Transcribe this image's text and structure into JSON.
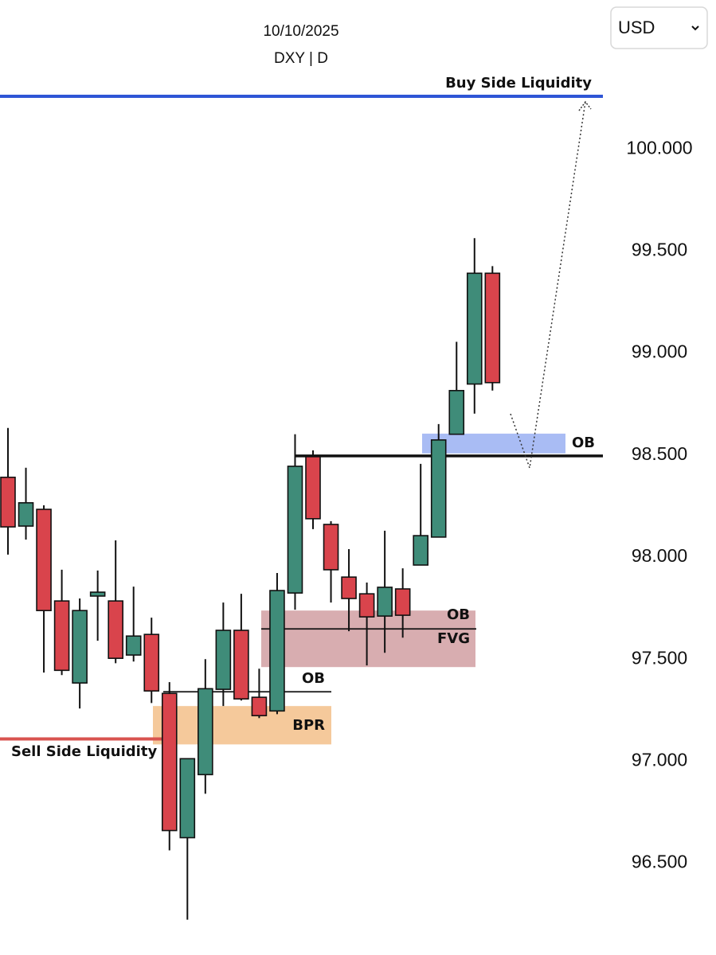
{
  "chart_data": {
    "type": "candlestick",
    "title": "10/10/2025",
    "subtitle": "DXY | D",
    "open": [
      98.391,
      98.152,
      98.234,
      97.785,
      97.383,
      97.809,
      97.785,
      97.52,
      97.621,
      97.332,
      96.625,
      96.934,
      97.352,
      97.641,
      97.313,
      97.246,
      97.824,
      98.492,
      98.16,
      97.902,
      97.82,
      97.711,
      97.844,
      97.961,
      98.098,
      98.602,
      98.848,
      99.391
    ],
    "high": [
      98.633,
      98.438,
      98.254,
      97.938,
      97.797,
      97.934,
      98.082,
      97.855,
      97.703,
      97.387,
      97.012,
      97.5,
      97.777,
      97.82,
      97.453,
      97.922,
      98.602,
      98.523,
      98.176,
      98.039,
      97.875,
      98.129,
      97.945,
      98.457,
      98.652,
      99.055,
      99.563,
      99.426
    ],
    "low": [
      98.012,
      98.086,
      97.434,
      97.422,
      97.258,
      97.59,
      97.48,
      97.488,
      97.285,
      96.563,
      96.223,
      96.84,
      97.27,
      97.297,
      97.211,
      97.23,
      97.742,
      98.137,
      97.777,
      97.637,
      97.469,
      97.531,
      97.605,
      97.961,
      98.098,
      98.602,
      98.703,
      98.816
    ],
    "close": [
      98.148,
      98.266,
      97.738,
      97.445,
      97.738,
      97.828,
      97.504,
      97.613,
      97.344,
      96.66,
      97.012,
      97.355,
      97.641,
      97.305,
      97.223,
      97.836,
      98.445,
      98.188,
      97.938,
      97.797,
      97.707,
      97.852,
      97.715,
      98.105,
      98.574,
      98.816,
      99.391,
      98.855
    ],
    "up_color": "#3f8c79",
    "down_color": "#d9444c",
    "ylim": [
      96.05,
      100.73
    ],
    "yticks": [
      {
        "value": 96.5,
        "label": "96.500"
      },
      {
        "value": 97,
        "label": "97.000"
      },
      {
        "value": 97.5,
        "label": "97.500"
      },
      {
        "value": 98,
        "label": "98.000"
      },
      {
        "value": 98.5,
        "label": "98.500"
      },
      {
        "value": 99,
        "label": "99.000"
      },
      {
        "value": 99.5,
        "label": "99.500"
      },
      {
        "value": 100,
        "label": "100.000"
      }
    ],
    "levels": [
      {
        "label": "Buy Side Liquidity",
        "value": 100.258,
        "color": "#2e55d6"
      },
      {
        "label": "Sell Side Liquidity",
        "value": 97.109,
        "color": "#d9534f"
      },
      {
        "value": 98.496,
        "color": "#111111"
      },
      {
        "value": 97.648,
        "color": "#111111"
      },
      {
        "label": "OB",
        "value": 97.34,
        "color": "#111111"
      }
    ],
    "zones": [
      {
        "labels": [
          "OB"
        ],
        "top": 98.605,
        "bottom": 98.508,
        "color": "#a9bcf4"
      },
      {
        "labels": [
          "OB",
          "FVG"
        ],
        "top": 97.738,
        "bottom": 97.461,
        "color": "#d8adb0"
      },
      {
        "labels": [
          "BPR"
        ],
        "top": 97.27,
        "bottom": 97.082,
        "color": "#f5c99b"
      }
    ]
  },
  "ui": {
    "currency_select": "USD"
  }
}
